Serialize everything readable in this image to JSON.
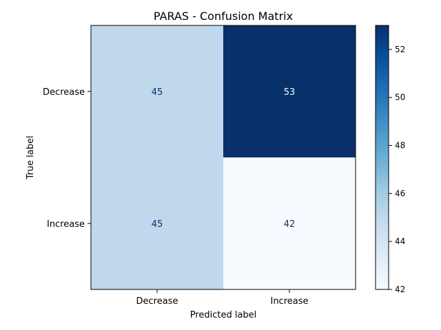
{
  "chart_data": {
    "type": "heatmap",
    "title": "PARAS - Confusion Matrix",
    "xlabel": "Predicted label",
    "ylabel": "True label",
    "x_categories": [
      "Decrease",
      "Increase"
    ],
    "y_categories": [
      "Decrease",
      "Increase"
    ],
    "values": [
      [
        45,
        53
      ],
      [
        45,
        42
      ]
    ],
    "colormap": "Blues",
    "colorbar": {
      "range": [
        42,
        53
      ],
      "ticks": [
        42,
        44,
        46,
        48,
        50,
        52
      ]
    },
    "colors": {
      "cell_low": "#f7fbff",
      "cell_mid": "#bed8ec",
      "cell_high": "#08306b",
      "text_on_light": "#08306b",
      "text_on_dark": "#f7fbff"
    }
  }
}
